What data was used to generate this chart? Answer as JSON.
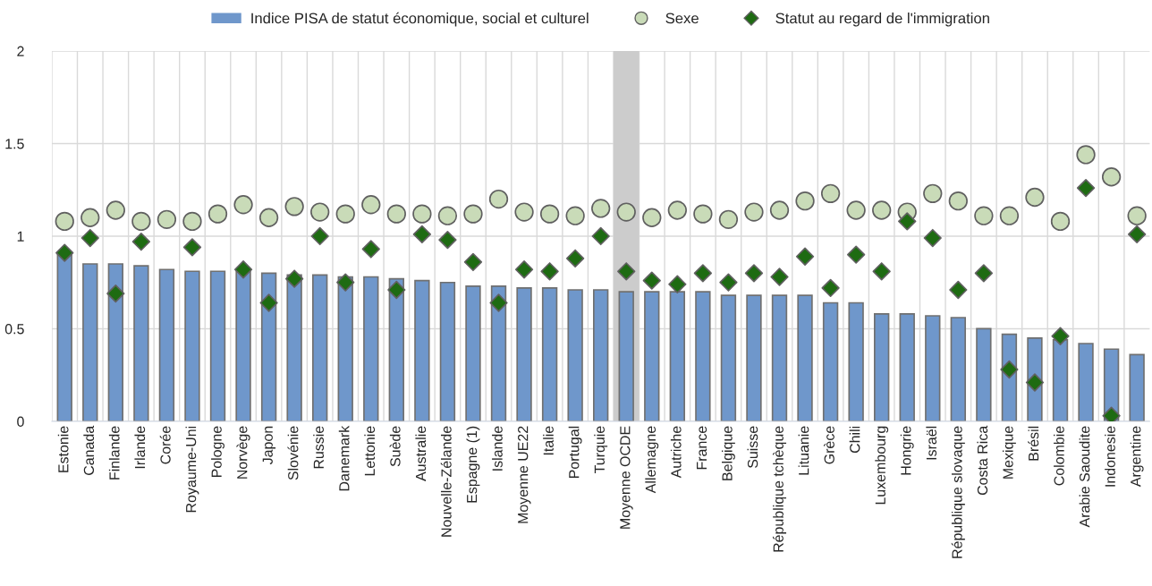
{
  "chart_data": {
    "type": "bar",
    "categories": [
      "Estonie",
      "Canada",
      "Finlande",
      "Irlande",
      "Corée",
      "Royaume-Uni",
      "Pologne",
      "Norvège",
      "Japon",
      "Slovénie",
      "Russie",
      "Danemark",
      "Lettonie",
      "Suède",
      "Australie",
      "Nouvelle-Zélande",
      "Espagne (1)",
      "Islande",
      "Moyenne UE22",
      "Italie",
      "Portugal",
      "Turquie",
      "Moyenne OCDE",
      "Allemagne",
      "Autriche",
      "France",
      "Belgique",
      "Suisse",
      "République tchèque",
      "Lituanie",
      "Grèce",
      "Chili",
      "Luxembourg",
      "Hongrie",
      "Israël",
      "République slovaque",
      "Costa Rica",
      "Mexique",
      "Brésil",
      "Colombie",
      "Arabie Saoudite",
      "Indonesie",
      "Argentine"
    ],
    "series": [
      {
        "name": "Indice PISA de statut économique, social et culturel",
        "color": "#6f97cb",
        "values": [
          0.9,
          0.85,
          0.85,
          0.84,
          0.82,
          0.81,
          0.81,
          0.81,
          0.8,
          0.79,
          0.79,
          0.78,
          0.78,
          0.77,
          0.76,
          0.75,
          0.73,
          0.73,
          0.72,
          0.72,
          0.71,
          0.71,
          0.7,
          0.7,
          0.7,
          0.7,
          0.68,
          0.68,
          0.68,
          0.68,
          0.64,
          0.64,
          0.58,
          0.58,
          0.57,
          0.56,
          0.5,
          0.47,
          0.45,
          0.44,
          0.42,
          0.39,
          0.36
        ]
      },
      {
        "name": "Sexe",
        "type": "scatter",
        "marker": "circle",
        "color": "#c9dbb8",
        "values": [
          1.08,
          1.1,
          1.14,
          1.08,
          1.09,
          1.08,
          1.12,
          1.17,
          1.1,
          1.16,
          1.13,
          1.12,
          1.17,
          1.12,
          1.12,
          1.11,
          1.12,
          1.2,
          1.13,
          1.12,
          1.11,
          1.15,
          1.13,
          1.1,
          1.14,
          1.12,
          1.09,
          1.13,
          1.14,
          1.19,
          1.23,
          1.14,
          1.14,
          1.13,
          1.23,
          1.19,
          1.11,
          1.11,
          1.21,
          1.08,
          1.44,
          1.32,
          1.11
        ]
      },
      {
        "name": "Statut au regard de l'immigration",
        "type": "scatter",
        "marker": "diamond",
        "color": "#1e6b12",
        "values": [
          0.91,
          0.99,
          0.69,
          0.97,
          null,
          0.94,
          null,
          0.82,
          0.64,
          0.77,
          1.0,
          0.75,
          0.93,
          0.71,
          1.01,
          0.98,
          0.86,
          0.64,
          0.82,
          0.81,
          0.88,
          1.0,
          0.81,
          0.76,
          0.74,
          0.8,
          0.75,
          0.8,
          0.78,
          0.89,
          0.72,
          0.9,
          0.81,
          1.08,
          0.99,
          0.71,
          0.8,
          0.28,
          0.21,
          0.46,
          1.26,
          0.03,
          1.01
        ]
      }
    ],
    "ylim": [
      0,
      2
    ],
    "yticks": [
      0,
      0.5,
      1,
      1.5,
      2
    ],
    "bands": [
      {
        "axis": "x",
        "from": "Moyenne OCDE",
        "to": "Moyenne OCDE",
        "color": "#cccccc"
      }
    ],
    "grid": true,
    "legend": "top"
  }
}
